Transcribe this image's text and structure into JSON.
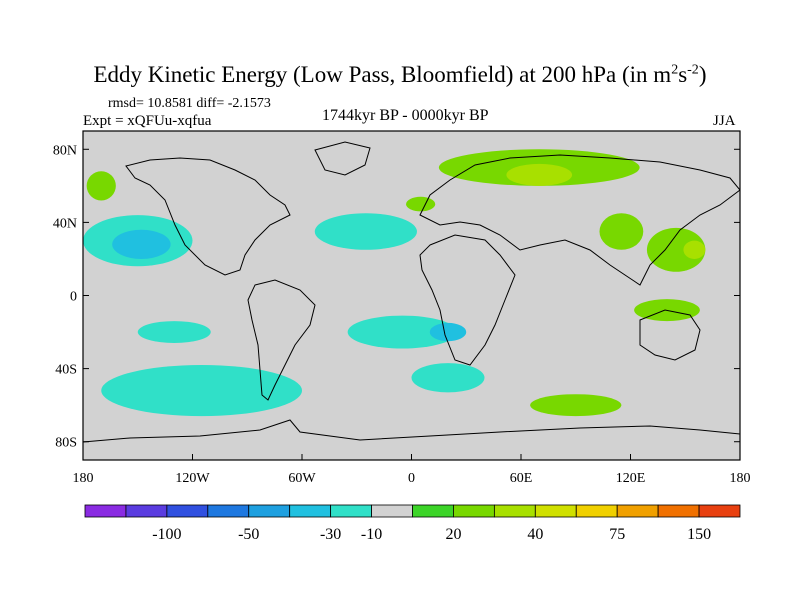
{
  "title": {
    "main": "Eddy Kinetic Energy (Low Pass, Bloomfield) at 200 hPa (in m",
    "sup1": "2",
    "mid": "s",
    "sup2": "-2",
    "end": ")"
  },
  "stats": "rmsd= 10.8581 diff= -2.1573",
  "expt": "Expt = xQFUu-xqfua",
  "period": "1744kyr BP - 0000kyr BP",
  "season": "JJA",
  "axes": {
    "lat_labels": [
      "80N",
      "40N",
      "0",
      "40S",
      "80S"
    ],
    "lat_values": [
      80,
      40,
      0,
      -40,
      -80
    ],
    "lon_labels": [
      "180",
      "120W",
      "60W",
      "0",
      "60E",
      "120E",
      "180"
    ],
    "lon_values": [
      -180,
      -120,
      -60,
      0,
      60,
      120,
      180
    ],
    "lat_range": [
      -90,
      90
    ],
    "lon_range": [
      -180,
      180
    ]
  },
  "colorbar": {
    "colors": [
      "#8a2be2",
      "#5a3ce0",
      "#3050e0",
      "#1e78e0",
      "#1ea0e0",
      "#20c0e0",
      "#30e0c8",
      "#d2d2d2",
      "#3cd428",
      "#78d800",
      "#a8e000",
      "#d0e000",
      "#f0d000",
      "#f0a000",
      "#f07000",
      "#e84010"
    ],
    "labels": [
      "-100",
      "-50",
      "-30",
      "-10",
      "20",
      "40",
      "75",
      "150"
    ]
  },
  "colors": {
    "background": "#d2d2d2",
    "negative_fill": "#30e0c8",
    "negative_strong": "#20c0e0",
    "negative_stronger": "#1ea0e0",
    "positive_fill": "#78d800",
    "positive_strong": "#a8e000",
    "positive_stronger": "#d0e000",
    "coastline": "#000000"
  },
  "regions": {
    "negative": [
      {
        "name": "north-pacific-east",
        "lon": -150,
        "lat": 30,
        "rx": 30,
        "ry": 14
      },
      {
        "name": "north-atlantic",
        "lon": -25,
        "lat": 35,
        "rx": 28,
        "ry": 10
      },
      {
        "name": "south-pacific",
        "lon": -130,
        "lat": -20,
        "rx": 20,
        "ry": 6
      },
      {
        "name": "south-atlantic",
        "lon": -5,
        "lat": -20,
        "rx": 30,
        "ry": 9
      },
      {
        "name": "south-ocean",
        "lon": -115,
        "lat": -52,
        "rx": 55,
        "ry": 14
      },
      {
        "name": "indian",
        "lon": 20,
        "lat": -45,
        "rx": 20,
        "ry": 8
      }
    ],
    "negative_strong": [
      {
        "name": "pacific-core",
        "lon": -148,
        "lat": 28,
        "rx": 16,
        "ry": 8
      },
      {
        "name": "atlantic-core",
        "lon": 20,
        "lat": -20,
        "rx": 10,
        "ry": 5
      }
    ],
    "positive": [
      {
        "name": "siberia",
        "lon": 70,
        "lat": 70,
        "rx": 55,
        "ry": 10
      },
      {
        "name": "china",
        "lon": 115,
        "lat": 35,
        "rx": 12,
        "ry": 10
      },
      {
        "name": "west-pacific",
        "lon": 145,
        "lat": 25,
        "rx": 16,
        "ry": 12
      },
      {
        "name": "australia-north",
        "lon": 140,
        "lat": -8,
        "rx": 18,
        "ry": 6
      },
      {
        "name": "southern-indian",
        "lon": 90,
        "lat": -60,
        "rx": 25,
        "ry": 6
      },
      {
        "name": "north-america-north",
        "lon": -170,
        "lat": 60,
        "rx": 8,
        "ry": 8
      },
      {
        "name": "europe",
        "lon": 5,
        "lat": 50,
        "rx": 8,
        "ry": 4
      }
    ],
    "positive_strong": [
      {
        "name": "siberia-core",
        "lon": 70,
        "lat": 66,
        "rx": 18,
        "ry": 6
      },
      {
        "name": "west-pacific-core",
        "lon": 155,
        "lat": 25,
        "rx": 6,
        "ry": 5
      }
    ]
  }
}
